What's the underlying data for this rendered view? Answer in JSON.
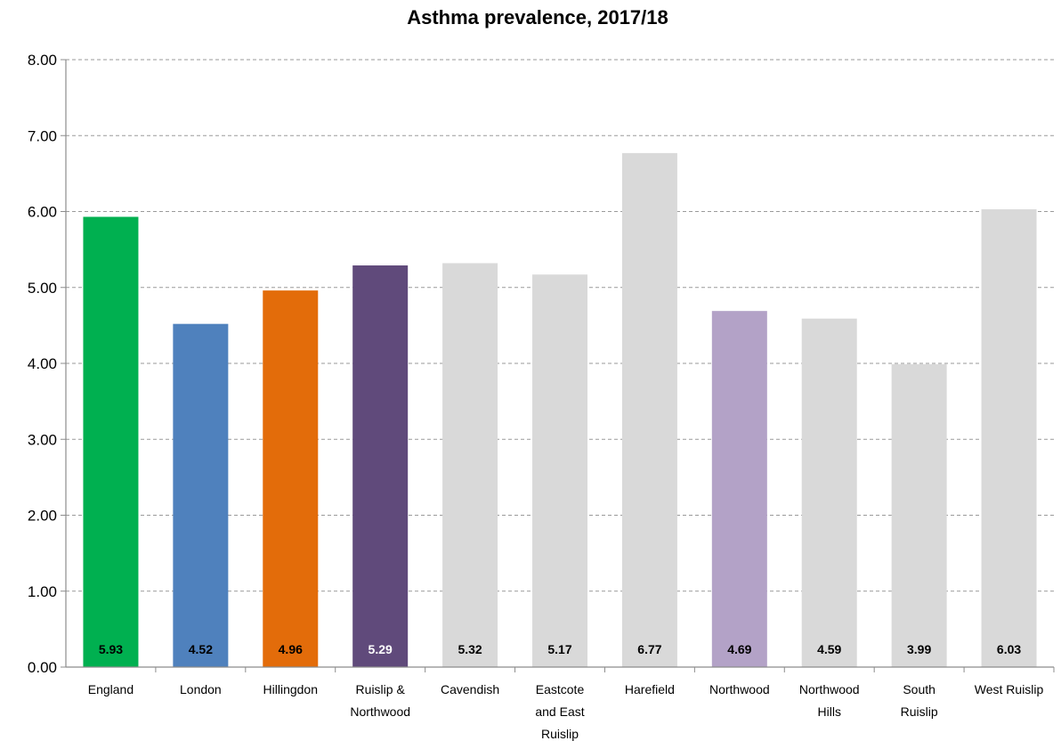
{
  "chart_data": {
    "type": "bar",
    "title": "Asthma prevalence, 2017/18",
    "xlabel": "",
    "ylabel": "",
    "ylim": [
      0,
      8
    ],
    "yticks": [
      "0.00",
      "1.00",
      "2.00",
      "3.00",
      "4.00",
      "5.00",
      "6.00",
      "7.00",
      "8.00"
    ],
    "grid": true,
    "legend": "none",
    "categories": [
      [
        "England"
      ],
      [
        "London"
      ],
      [
        "Hillingdon"
      ],
      [
        "Ruislip &",
        "Northwood"
      ],
      [
        "Cavendish"
      ],
      [
        "Eastcote",
        "and East",
        "Ruislip"
      ],
      [
        "Harefield"
      ],
      [
        "Northwood"
      ],
      [
        "Northwood",
        "Hills"
      ],
      [
        "South",
        "Ruislip"
      ],
      [
        "West Ruislip"
      ]
    ],
    "values": [
      5.93,
      4.52,
      4.96,
      5.29,
      5.32,
      5.17,
      6.77,
      4.69,
      4.59,
      3.99,
      6.03
    ],
    "value_labels": [
      "5.93",
      "4.52",
      "4.96",
      "5.29",
      "5.32",
      "5.17",
      "6.77",
      "4.69",
      "4.59",
      "3.99",
      "6.03"
    ],
    "colors": [
      "#00b050",
      "#4f81bd",
      "#e36c0a",
      "#604a7b",
      "#d9d9d9",
      "#d9d9d9",
      "#d9d9d9",
      "#b3a2c7",
      "#d9d9d9",
      "#d9d9d9",
      "#d9d9d9"
    ],
    "label_colors": [
      "#000000",
      "#000000",
      "#000000",
      "#ffffff",
      "#000000",
      "#000000",
      "#000000",
      "#000000",
      "#000000",
      "#000000",
      "#000000"
    ]
  }
}
